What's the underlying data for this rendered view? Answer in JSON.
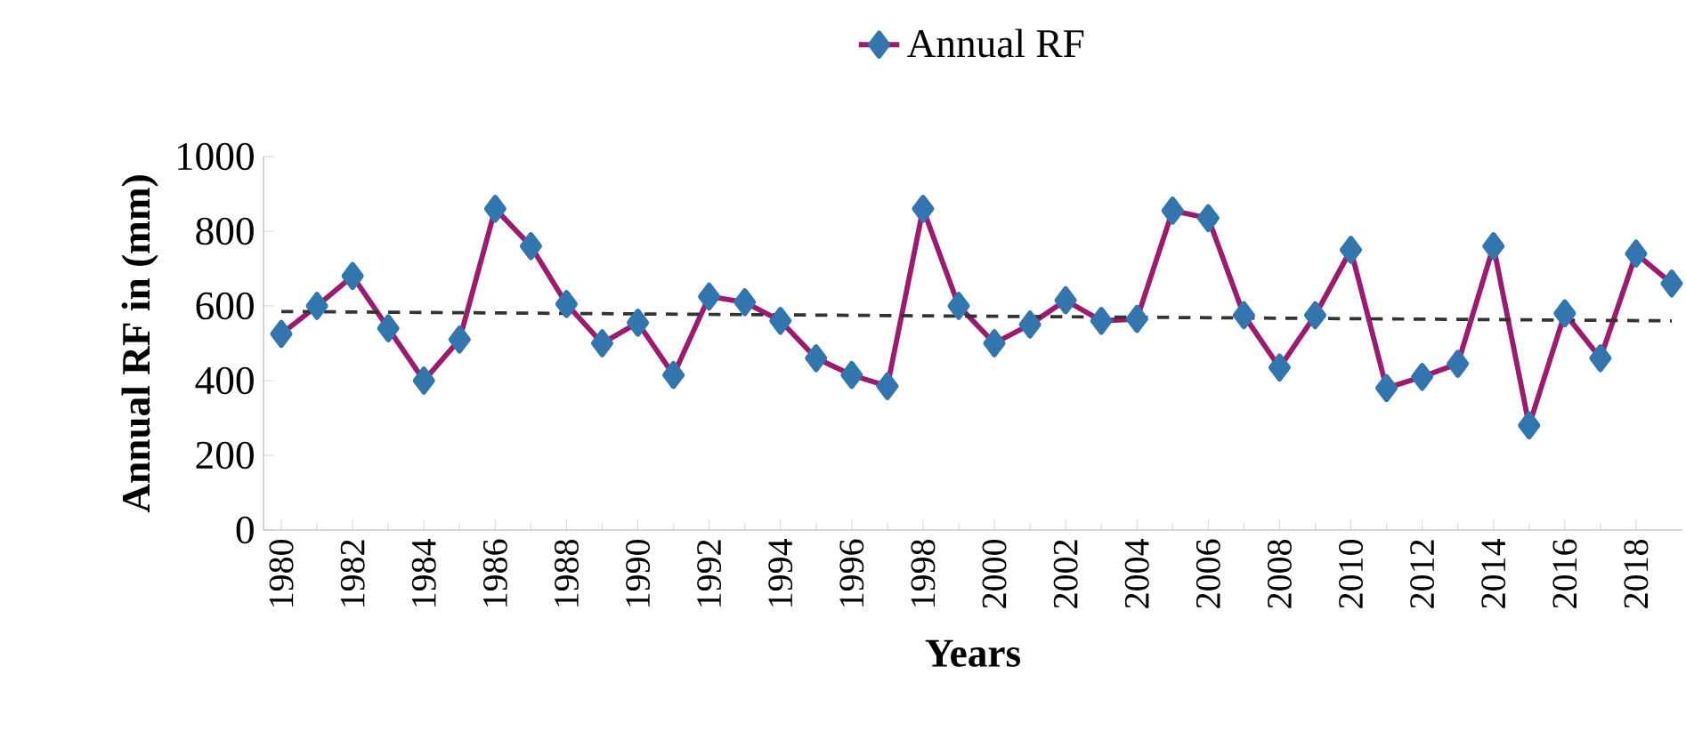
{
  "chart_data": {
    "type": "line",
    "xlabel": "Years",
    "ylabel": "Annual RF in (mm)",
    "x": [
      1980,
      1981,
      1982,
      1983,
      1984,
      1985,
      1986,
      1987,
      1988,
      1989,
      1990,
      1991,
      1992,
      1993,
      1994,
      1995,
      1996,
      1997,
      1998,
      1999,
      2000,
      2001,
      2002,
      2003,
      2004,
      2005,
      2006,
      2007,
      2008,
      2009,
      2010,
      2011,
      2012,
      2013,
      2014,
      2015,
      2016,
      2017,
      2018,
      2019
    ],
    "series": [
      {
        "name": "Annual RF",
        "color": "#9b1b6e",
        "marker": "diamond",
        "values": [
          525,
          600,
          680,
          540,
          400,
          510,
          860,
          760,
          605,
          500,
          555,
          415,
          625,
          610,
          560,
          460,
          415,
          385,
          860,
          600,
          500,
          550,
          615,
          560,
          565,
          855,
          835,
          575,
          435,
          575,
          750,
          380,
          410,
          445,
          760,
          280,
          580,
          460,
          740,
          660
        ]
      },
      {
        "type": "line",
        "color": "#333333",
        "line_style": "dashed",
        "marker": "none",
        "x": [
          1980,
          2019
        ],
        "values": [
          585,
          560
        ]
      }
    ],
    "xlim": [
      1979.5,
      2019.3
    ],
    "xticks": [
      1980,
      1982,
      1984,
      1986,
      1988,
      1990,
      1992,
      1994,
      1996,
      1998,
      2000,
      2002,
      2004,
      2006,
      2008,
      2010,
      2012,
      2014,
      2016,
      2018
    ],
    "ylim": [
      0,
      1000
    ],
    "yticks": [
      0,
      200,
      400,
      600,
      800,
      1000
    ],
    "legend": "top",
    "grid": false
  }
}
